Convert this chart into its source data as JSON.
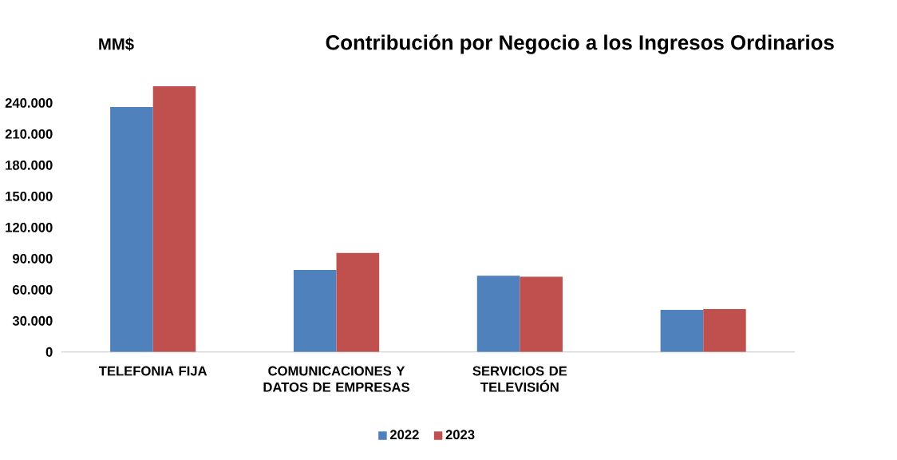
{
  "chart_data": {
    "type": "bar",
    "title": "Contribución por Negocio a los Ingresos Ordinarios",
    "ylabel": "MM$",
    "categories": [
      "TELEFONIA FIJA",
      "COMUNICACIONES Y DATOS DE EMPRESAS",
      "SERVICIOS DE TELEVISIÓN",
      null
    ],
    "series": [
      {
        "name": "2022",
        "color": "#4f81bd",
        "values": [
          236000,
          79000,
          73500,
          40600
        ]
      },
      {
        "name": "2023",
        "color": "#c0504d",
        "values": [
          256000,
          95500,
          72500,
          41300
        ]
      }
    ],
    "ylim": [
      0,
      256000
    ],
    "yticks": [
      {
        "value": 0,
        "label": "0"
      },
      {
        "value": 30000,
        "label": "30.000"
      },
      {
        "value": 60000,
        "label": "60.000"
      },
      {
        "value": 90000,
        "label": "90.000"
      },
      {
        "value": 120000,
        "label": "120.000"
      },
      {
        "value": 150000,
        "label": "150.000"
      },
      {
        "value": 180000,
        "label": "180.000"
      },
      {
        "value": 210000,
        "label": "210.000"
      },
      {
        "value": 240000,
        "label": "240.000"
      }
    ],
    "legend": "bottom"
  }
}
